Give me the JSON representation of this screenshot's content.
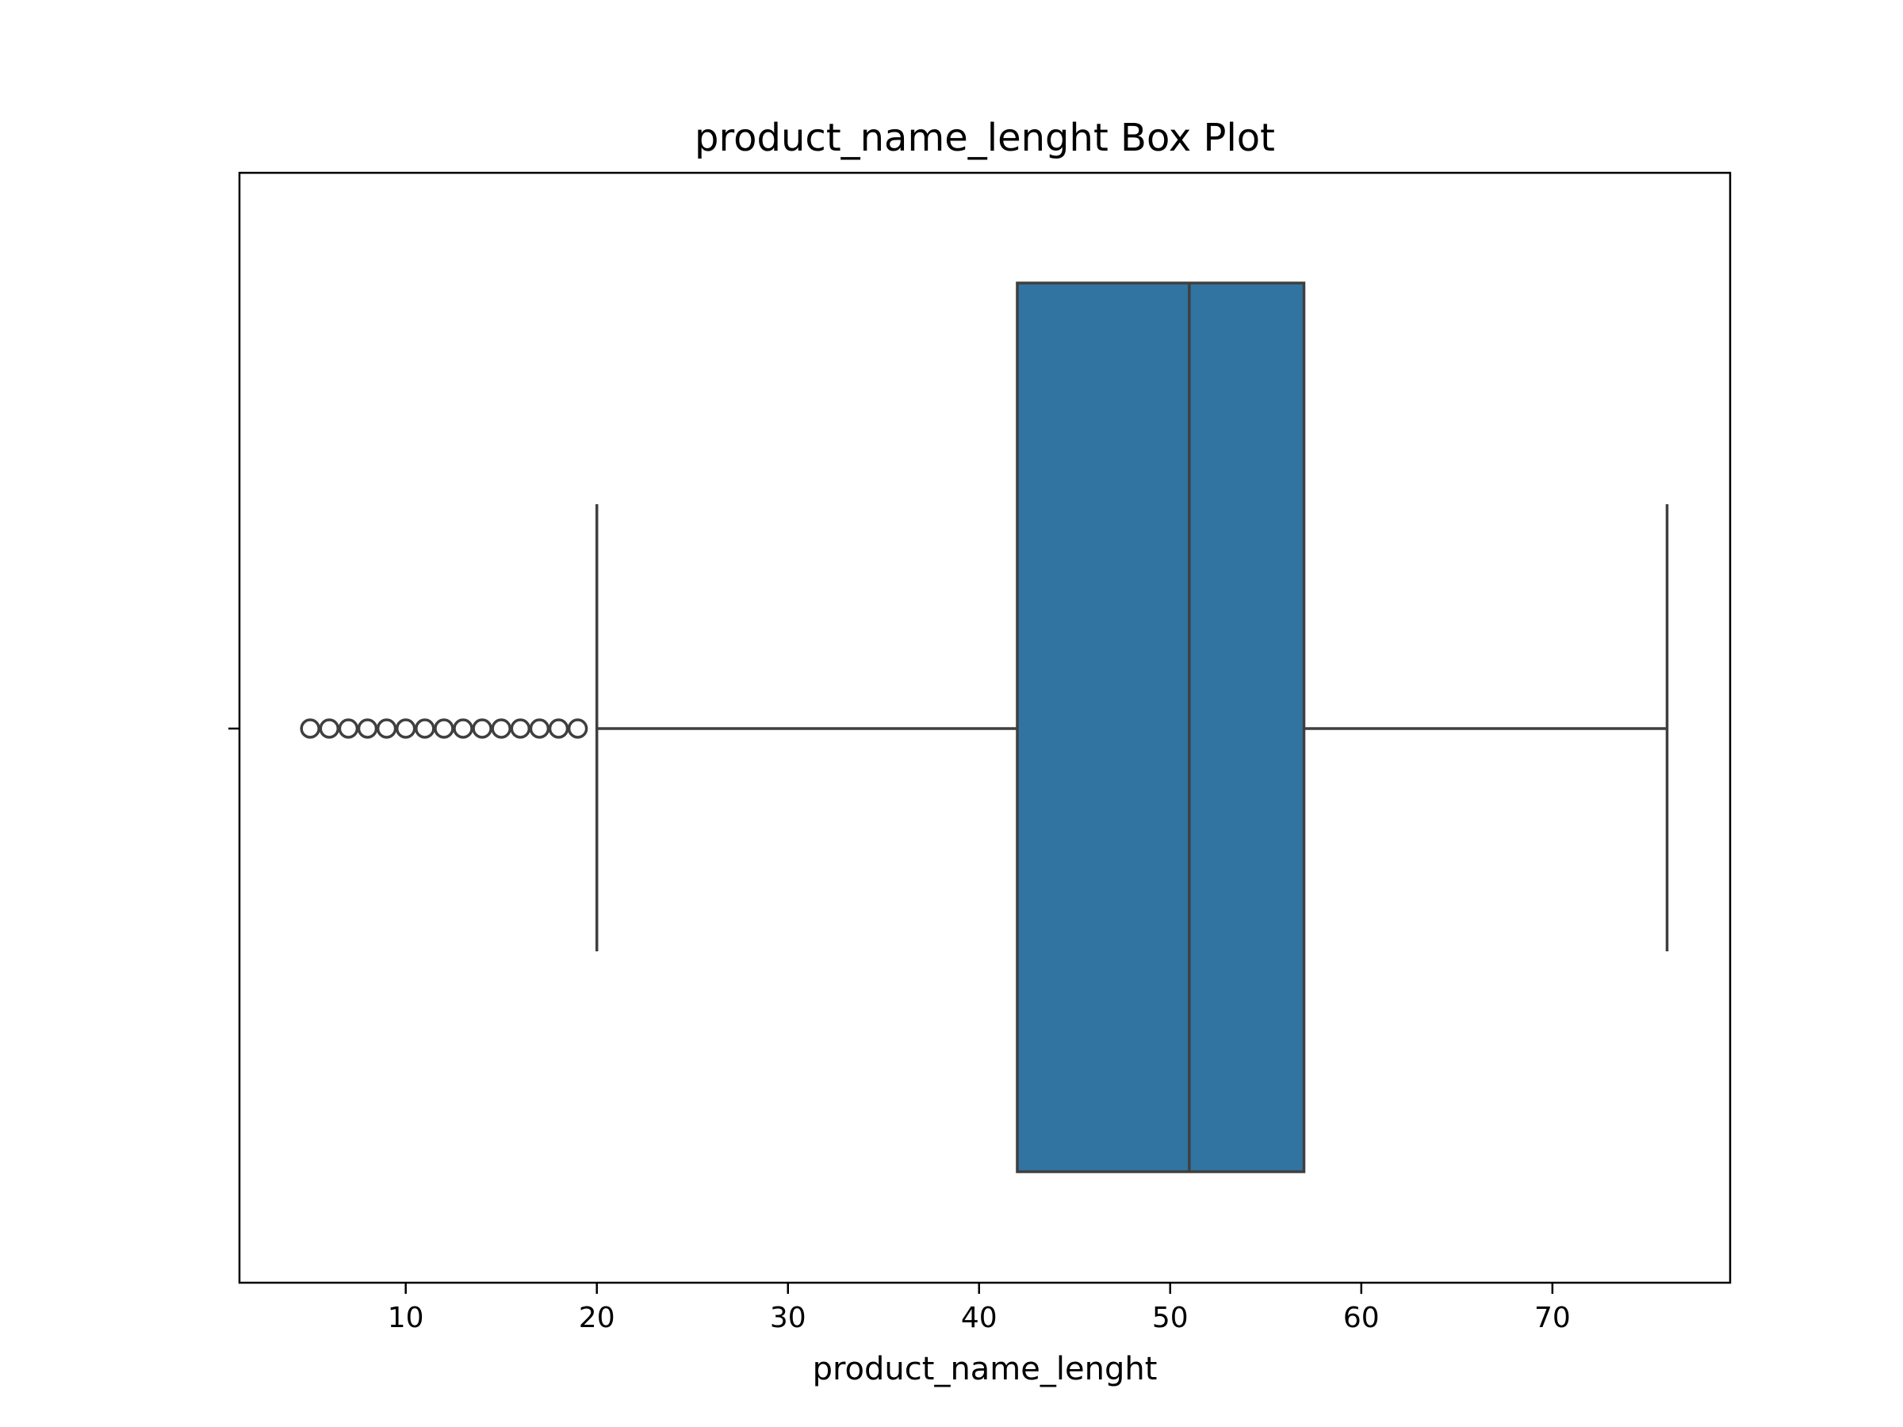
{
  "chart_data": {
    "type": "box",
    "title": "product_name_lenght Box Plot",
    "xlabel": "product_name_lenght",
    "ylabel": "",
    "xlim": [
      1.3,
      79.3
    ],
    "xticks": [
      10,
      20,
      30,
      40,
      50,
      60,
      70
    ],
    "orientation": "horizontal",
    "grid": false,
    "box": {
      "whisker_low": 20,
      "q1": 42,
      "median": 51,
      "q3": 57,
      "whisker_high": 76,
      "outliers": [
        5,
        6,
        7,
        8,
        9,
        10,
        11,
        12,
        13,
        14,
        15,
        16,
        17,
        18,
        19
      ]
    },
    "colors": {
      "box_fill": "#3274a1",
      "line": "#3f3f3f",
      "frame": "#000000"
    }
  }
}
